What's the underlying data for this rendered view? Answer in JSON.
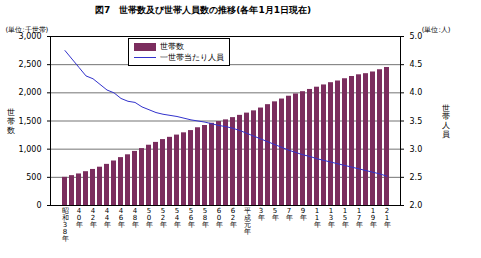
{
  "chart_data": {
    "type": "bar",
    "title": "図7　世帯数及び世帯人員数の推移(各年1月1日現在)",
    "ylabel": "世帯数",
    "y2label": "世帯人員",
    "annotations": [
      "(単位:千世帯)",
      "(単位:人)"
    ],
    "categories": [
      "昭和38年",
      null,
      "40年",
      null,
      "42年",
      null,
      "44年",
      null,
      "46年",
      null,
      "48年",
      null,
      "50年",
      null,
      "52年",
      null,
      "54年",
      null,
      "56年",
      null,
      "58年",
      null,
      "60年",
      null,
      "62年",
      null,
      "平成元年",
      null,
      "3年",
      null,
      "5年",
      null,
      "7年",
      null,
      "9年",
      null,
      "11年",
      null,
      "13年",
      null,
      "15年",
      null,
      "17年",
      null,
      "19年",
      null,
      "21年"
    ],
    "series": [
      {
        "name": "世帯数",
        "type": "bar",
        "color": "#7b2d5e",
        "values": [
          500,
          530,
          560,
          600,
          640,
          680,
          730,
          790,
          850,
          900,
          960,
          1010,
          1070,
          1120,
          1170,
          1210,
          1250,
          1290,
          1330,
          1380,
          1420,
          1460,
          1490,
          1520,
          1560,
          1600,
          1640,
          1680,
          1730,
          1790,
          1840,
          1890,
          1940,
          1980,
          2020,
          2060,
          2100,
          2140,
          2180,
          2210,
          2250,
          2290,
          2320,
          2340,
          2370,
          2410,
          2450
        ]
      },
      {
        "name": "一世帯当たり人員",
        "type": "line",
        "color": "#3333cc",
        "axis": "y2",
        "values": [
          4.75,
          4.6,
          4.45,
          4.3,
          4.25,
          4.15,
          4.05,
          4.0,
          3.9,
          3.85,
          3.83,
          3.75,
          3.7,
          3.65,
          3.62,
          3.6,
          3.58,
          3.55,
          3.52,
          3.5,
          3.48,
          3.45,
          3.42,
          3.4,
          3.37,
          3.33,
          3.28,
          3.23,
          3.18,
          3.13,
          3.08,
          3.03,
          2.98,
          2.94,
          2.9,
          2.87,
          2.83,
          2.8,
          2.77,
          2.74,
          2.71,
          2.68,
          2.65,
          2.62,
          2.59,
          2.56,
          2.52
        ]
      }
    ],
    "ylim": [
      0,
      3000
    ],
    "yticks": [
      0,
      500,
      {
        "value": 1000,
        "label": "1,000"
      },
      {
        "value": 1500,
        "label": "1,500"
      },
      {
        "value": 2000,
        "label": "2,000"
      },
      {
        "value": 2500,
        "label": "2,500"
      },
      {
        "value": 3000,
        "label": "3,000"
      }
    ],
    "y2lim": [
      2,
      5
    ],
    "y2ticks": [
      {
        "value": 2,
        "label": "2.0"
      },
      {
        "value": 2.5,
        "label": "2.5"
      },
      {
        "value": 3,
        "label": "3.0"
      },
      {
        "value": 3.5,
        "label": "3.5"
      },
      {
        "value": 4,
        "label": "4.0"
      },
      {
        "value": 4.5,
        "label": "4.5"
      },
      {
        "value": 5,
        "label": "5.0"
      }
    ],
    "grid": true,
    "legend": "top"
  }
}
